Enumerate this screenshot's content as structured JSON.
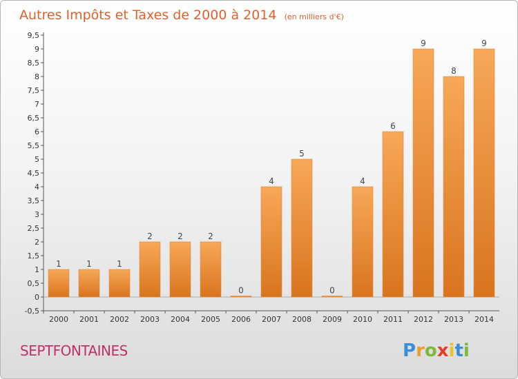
{
  "chart_data": {
    "type": "bar",
    "title": "Autres Impôts et Taxes de 2000 à 2014",
    "subtitle": "(en milliers d'€)",
    "categories": [
      "2000",
      "2001",
      "2002",
      "2003",
      "2004",
      "2005",
      "2006",
      "2007",
      "2008",
      "2009",
      "2010",
      "2011",
      "2012",
      "2013",
      "2014"
    ],
    "values": [
      1,
      1,
      1,
      2,
      2,
      2,
      0,
      4,
      5,
      0,
      4,
      6,
      9,
      8,
      9
    ],
    "value_labels": [
      "1",
      "1",
      "1",
      "2",
      "2",
      "2",
      "0",
      "4",
      "5",
      "0",
      "4",
      "6",
      "9",
      "8",
      "9"
    ],
    "yticks": [
      "-0,5",
      "0",
      "0,5",
      "1",
      "1,5",
      "2",
      "2,5",
      "3",
      "3,5",
      "4",
      "4,5",
      "5",
      "5,5",
      "6",
      "6,5",
      "7",
      "7,5",
      "8",
      "8,5",
      "9",
      "9,5"
    ],
    "ylim": [
      -0.5,
      9.5
    ],
    "xlabel": "",
    "ylabel": "",
    "bar_color": "#f0963e",
    "grid": false,
    "legend": "none"
  },
  "place_name": "SEPTFONTAINES",
  "logo": {
    "letters": [
      "P",
      "r",
      "o",
      "x",
      "i",
      "t",
      "i"
    ],
    "colors": [
      "#3c8dd8",
      "#e8a02a",
      "#7cb83a",
      "#e0402a",
      "#e8c32a",
      "#3c8dd8",
      "#7cb83a"
    ]
  }
}
